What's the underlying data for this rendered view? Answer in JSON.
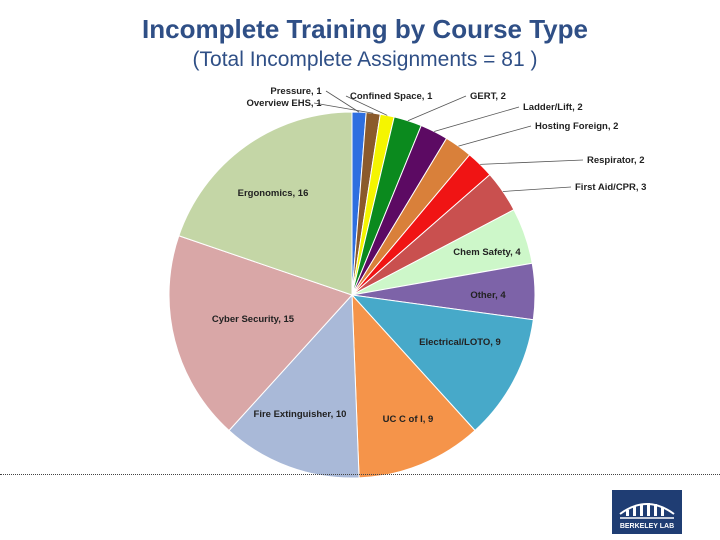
{
  "title": "Incomplete Training by Course Type",
  "subtitle": "(Total Incomplete Assignments = 81 )",
  "logo": {
    "text": "BERKELEY LAB",
    "color": "#1f3d73"
  },
  "chart_data": {
    "type": "pie",
    "title": "Incomplete Training by Course Type",
    "subtitle": "(Total Incomplete Assignments = 81 )",
    "total": 81,
    "start": "12 o'clock",
    "direction": "clockwise",
    "slices": [
      {
        "label": "Pressure, 1",
        "value": 1,
        "color": "#2e6fe0"
      },
      {
        "label": "Overview EHS, 1",
        "value": 1,
        "color": "#8b5a2b"
      },
      {
        "label": "Confined Space, 1",
        "value": 1,
        "color": "#f5f500"
      },
      {
        "label": "GERT, 2",
        "value": 2,
        "color": "#0b8a1e"
      },
      {
        "label": "Ladder/Lift, 2",
        "value": 2,
        "color": "#5c0a63"
      },
      {
        "label": "Hosting Foreign, 2",
        "value": 2,
        "color": "#d9803a"
      },
      {
        "label": "Respirator, 2",
        "value": 2,
        "color": "#f01414"
      },
      {
        "label": "First Aid/CPR, 3",
        "value": 3,
        "color": "#c9504f"
      },
      {
        "label": "Chem Safety, 4",
        "value": 4,
        "color": "#cdf7c9"
      },
      {
        "label": "Other, 4",
        "value": 4,
        "color": "#7d63a8"
      },
      {
        "label": "Electrical/LOTO, 9",
        "value": 9,
        "color": "#47a9c9"
      },
      {
        "label": "UC C of I, 9",
        "value": 9,
        "color": "#f5944a"
      },
      {
        "label": "Fire Extinguisher, 10",
        "value": 10,
        "color": "#a9b9d8"
      },
      {
        "label": "Cyber Security, 15",
        "value": 15,
        "color": "#d9a7a7"
      },
      {
        "label": "Ergonomics, 16",
        "value": 16,
        "color": "#c4d6a6"
      }
    ]
  }
}
